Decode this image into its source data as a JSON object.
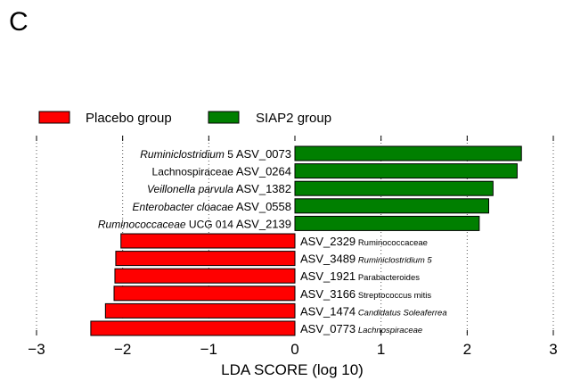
{
  "panel_label": "C",
  "chart_data": {
    "type": "bar",
    "orientation": "horizontal",
    "xlabel": "LDA SCORE (log 10)",
    "xlim": [
      -3,
      3
    ],
    "xticks": [
      -3,
      -2,
      -1,
      0,
      1,
      2,
      3
    ],
    "xtick_labels": [
      "−3",
      "−2",
      "−1",
      "0",
      "1",
      "2",
      "3"
    ],
    "grid": "vertical dotted at -3, -1, 1, 3",
    "legend_position": "top-left",
    "legend": [
      {
        "label": "Placebo group",
        "color": "#ff0000"
      },
      {
        "label": "SIAP2 group",
        "color": "#007f00"
      }
    ],
    "bars": [
      {
        "asv": "ASV_0073",
        "taxon_parts": [
          {
            "t": "Ruminiclostridium",
            "i": true
          },
          {
            "t": " 5",
            "i": false
          }
        ],
        "value": 2.63,
        "group": "SIAP2 group"
      },
      {
        "asv": "ASV_0264",
        "taxon_parts": [
          {
            "t": "Lachnospiraceae",
            "i": false
          }
        ],
        "value": 2.58,
        "group": "SIAP2 group"
      },
      {
        "asv": "ASV_1382",
        "taxon_parts": [
          {
            "t": "Veillonella parvula",
            "i": true
          }
        ],
        "value": 2.3,
        "group": "SIAP2 group"
      },
      {
        "asv": "ASV_0558",
        "taxon_parts": [
          {
            "t": "Enterobacter cloacae",
            "i": true
          }
        ],
        "value": 2.25,
        "group": "SIAP2 group"
      },
      {
        "asv": "ASV_2139",
        "taxon_parts": [
          {
            "t": "Ruminococcaceae",
            "i": true
          },
          {
            "t": " UCG 014",
            "i": false
          }
        ],
        "value": 2.14,
        "group": "SIAP2 group"
      },
      {
        "asv": "ASV_2329",
        "taxon_parts": [
          {
            "t": "Ruminococcaceae",
            "i": false
          }
        ],
        "value": -2.02,
        "group": "Placebo group"
      },
      {
        "asv": "ASV_3489",
        "taxon_parts": [
          {
            "t": "Ruminiclostridium 5",
            "i": true
          }
        ],
        "value": -2.08,
        "group": "Placebo group"
      },
      {
        "asv": "ASV_1921",
        "taxon_parts": [
          {
            "t": "Parabacteroides",
            "i": false
          }
        ],
        "value": -2.09,
        "group": "Placebo group"
      },
      {
        "asv": "ASV_3166",
        "taxon_parts": [
          {
            "t": "Streptococcus mitis",
            "i": false
          }
        ],
        "value": -2.1,
        "group": "Placebo group"
      },
      {
        "asv": "ASV_1474",
        "taxon_parts": [
          {
            "t": "Candidatus Soleaferrea",
            "i": true
          }
        ],
        "value": -2.2,
        "group": "Placebo group"
      },
      {
        "asv": "ASV_0773",
        "taxon_parts": [
          {
            "t": "Lachnospiraceae",
            "i": true
          }
        ],
        "value": -2.37,
        "group": "Placebo group"
      }
    ]
  }
}
